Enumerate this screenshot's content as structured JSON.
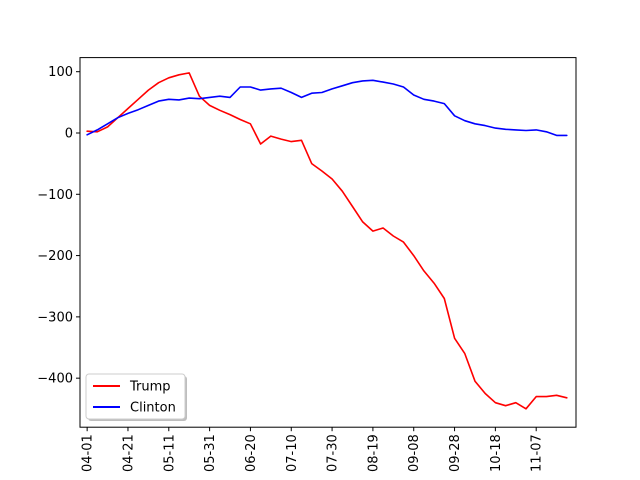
{
  "chart_data": {
    "type": "line",
    "title": "",
    "xlabel": "",
    "ylabel": "",
    "x_tick_labels": [
      "04-01",
      "04-21",
      "05-11",
      "05-31",
      "06-20",
      "07-10",
      "07-30",
      "08-19",
      "09-08",
      "09-28",
      "10-18",
      "11-07"
    ],
    "y_ticks": [
      100,
      0,
      -100,
      -200,
      -300,
      -400
    ],
    "y_tick_labels": [
      "100",
      "0",
      "−100",
      "−200",
      "−300",
      "−400"
    ],
    "xlim_index": [
      -3.5,
      239.5
    ],
    "ylim": [
      -480,
      123
    ],
    "grid": false,
    "legend_placement": "lower-left",
    "series": [
      {
        "name": "Trump",
        "color": "#ff0000",
        "x_index": [
          0,
          5,
          10,
          15,
          20,
          25,
          30,
          35,
          40,
          45,
          50,
          55,
          60,
          65,
          70,
          75,
          80,
          85,
          90,
          95,
          100,
          105,
          110,
          115,
          120,
          125,
          130,
          135,
          140,
          145,
          150,
          155,
          160,
          165,
          170,
          175,
          180,
          185,
          190,
          195,
          200,
          205,
          210,
          215,
          220,
          225,
          230,
          235
        ],
        "values": [
          3,
          2,
          10,
          25,
          40,
          55,
          70,
          82,
          90,
          95,
          98,
          60,
          45,
          37,
          30,
          22,
          15,
          -18,
          -5,
          -10,
          -14,
          -12,
          -50,
          -62,
          -75,
          -95,
          -120,
          -145,
          -160,
          -155,
          -168,
          -178,
          -200,
          -225,
          -245,
          -270,
          -335,
          -360,
          -405,
          -425,
          -440,
          -445,
          -440,
          -450,
          -430,
          -430,
          -428,
          -432
        ]
      },
      {
        "name": "Clinton",
        "color": "#0000ff",
        "x_index": [
          0,
          5,
          10,
          15,
          20,
          25,
          30,
          35,
          40,
          45,
          50,
          55,
          60,
          65,
          70,
          75,
          80,
          85,
          90,
          95,
          100,
          105,
          110,
          115,
          120,
          125,
          130,
          135,
          140,
          145,
          150,
          155,
          160,
          165,
          170,
          175,
          180,
          185,
          190,
          195,
          200,
          205,
          210,
          215,
          220,
          225,
          230,
          235
        ],
        "values": [
          -3,
          5,
          15,
          25,
          32,
          38,
          45,
          52,
          55,
          54,
          57,
          56,
          58,
          60,
          58,
          75,
          75,
          70,
          72,
          73,
          66,
          58,
          65,
          66,
          72,
          77,
          82,
          85,
          86,
          83,
          80,
          75,
          62,
          55,
          52,
          48,
          28,
          20,
          15,
          12,
          8,
          6,
          5,
          4,
          5,
          2,
          -4,
          -4
        ]
      }
    ]
  }
}
